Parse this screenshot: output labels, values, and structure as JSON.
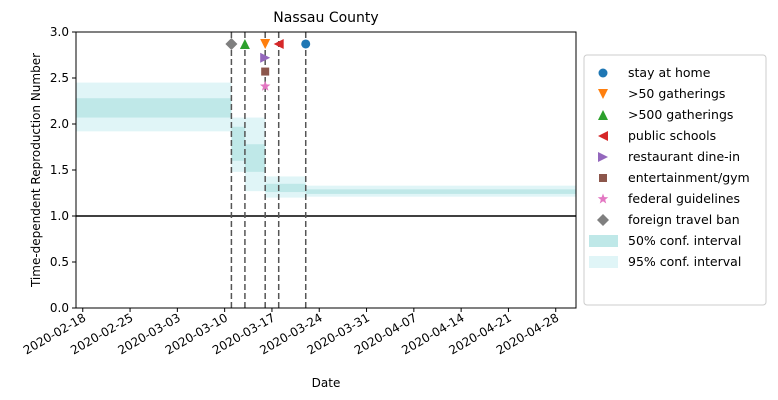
{
  "chart_data": {
    "type": "line",
    "title": "Nassau County",
    "xlabel": "Date",
    "ylabel": "Time-dependent Reproduction Number",
    "x_axis": {
      "type": "date",
      "xlim": [
        "2020-02-17",
        "2020-05-01"
      ],
      "ticks": [
        "2020-02-18",
        "2020-02-25",
        "2020-03-03",
        "2020-03-10",
        "2020-03-17",
        "2020-03-24",
        "2020-03-31",
        "2020-04-07",
        "2020-04-14",
        "2020-04-21",
        "2020-04-28"
      ]
    },
    "y_axis": {
      "ylim": [
        0.0,
        3.0
      ],
      "ticks": [
        0.0,
        0.5,
        1.0,
        1.5,
        2.0,
        2.5,
        3.0
      ],
      "tick_labels": [
        "0.0",
        "0.5",
        "1.0",
        "1.5",
        "2.0",
        "2.5",
        "3.0"
      ]
    },
    "reference_line": {
      "y": 1.0,
      "color": "#000000"
    },
    "conf_intervals": [
      {
        "start": "2020-02-17",
        "end": "2020-03-11",
        "ci50": [
          2.07,
          2.28
        ],
        "ci95": [
          1.92,
          2.45
        ]
      },
      {
        "start": "2020-03-11",
        "end": "2020-03-13",
        "ci50": [
          1.6,
          1.97
        ],
        "ci95": [
          1.48,
          2.07
        ]
      },
      {
        "start": "2020-03-13",
        "end": "2020-03-16",
        "ci50": [
          1.48,
          1.78
        ],
        "ci95": [
          1.27,
          2.07
        ]
      },
      {
        "start": "2020-03-16",
        "end": "2020-03-22",
        "ci50": [
          1.26,
          1.35
        ],
        "ci95": [
          1.2,
          1.43
        ]
      },
      {
        "start": "2020-03-22",
        "end": "2020-05-01",
        "ci50": [
          1.24,
          1.29
        ],
        "ci95": [
          1.21,
          1.33
        ]
      }
    ],
    "ci_colors": {
      "ci50": "#bfe8e8",
      "ci95": "#e0f5f7"
    },
    "interventions": [
      {
        "name": "stay at home",
        "date": "2020-03-22",
        "y": 2.87,
        "marker": "circle",
        "color": "#1f77b4"
      },
      {
        "name": ">50 gatherings",
        "date": "2020-03-16",
        "y": 2.87,
        "marker": "triangle-down",
        "color": "#ff7f0e"
      },
      {
        "name": ">500 gatherings",
        "date": "2020-03-13",
        "y": 2.87,
        "marker": "triangle-up",
        "color": "#2ca02c"
      },
      {
        "name": "public schools",
        "date": "2020-03-18",
        "y": 2.87,
        "marker": "triangle-left",
        "color": "#d62728"
      },
      {
        "name": "restaurant dine-in",
        "date": "2020-03-16",
        "y": 2.72,
        "marker": "triangle-right",
        "color": "#9467bd"
      },
      {
        "name": "entertainment/gym",
        "date": "2020-03-16",
        "y": 2.57,
        "marker": "square",
        "color": "#8c564b"
      },
      {
        "name": "federal guidelines",
        "date": "2020-03-16",
        "y": 2.41,
        "marker": "star",
        "color": "#e377c2"
      },
      {
        "name": "foreign travel ban",
        "date": "2020-03-11",
        "y": 2.87,
        "marker": "diamond",
        "color": "#7f7f7f"
      }
    ],
    "vlines": [
      "2020-03-11",
      "2020-03-13",
      "2020-03-16",
      "2020-03-18",
      "2020-03-22"
    ],
    "legend": {
      "placement": "center-right",
      "entries": [
        "stay at home",
        ">50 gatherings",
        ">500 gatherings",
        "public schools",
        "restaurant dine-in",
        "entertainment/gym",
        "federal guidelines",
        "foreign travel ban",
        "50% conf. interval",
        "95% conf. interval"
      ]
    },
    "grid": false
  }
}
